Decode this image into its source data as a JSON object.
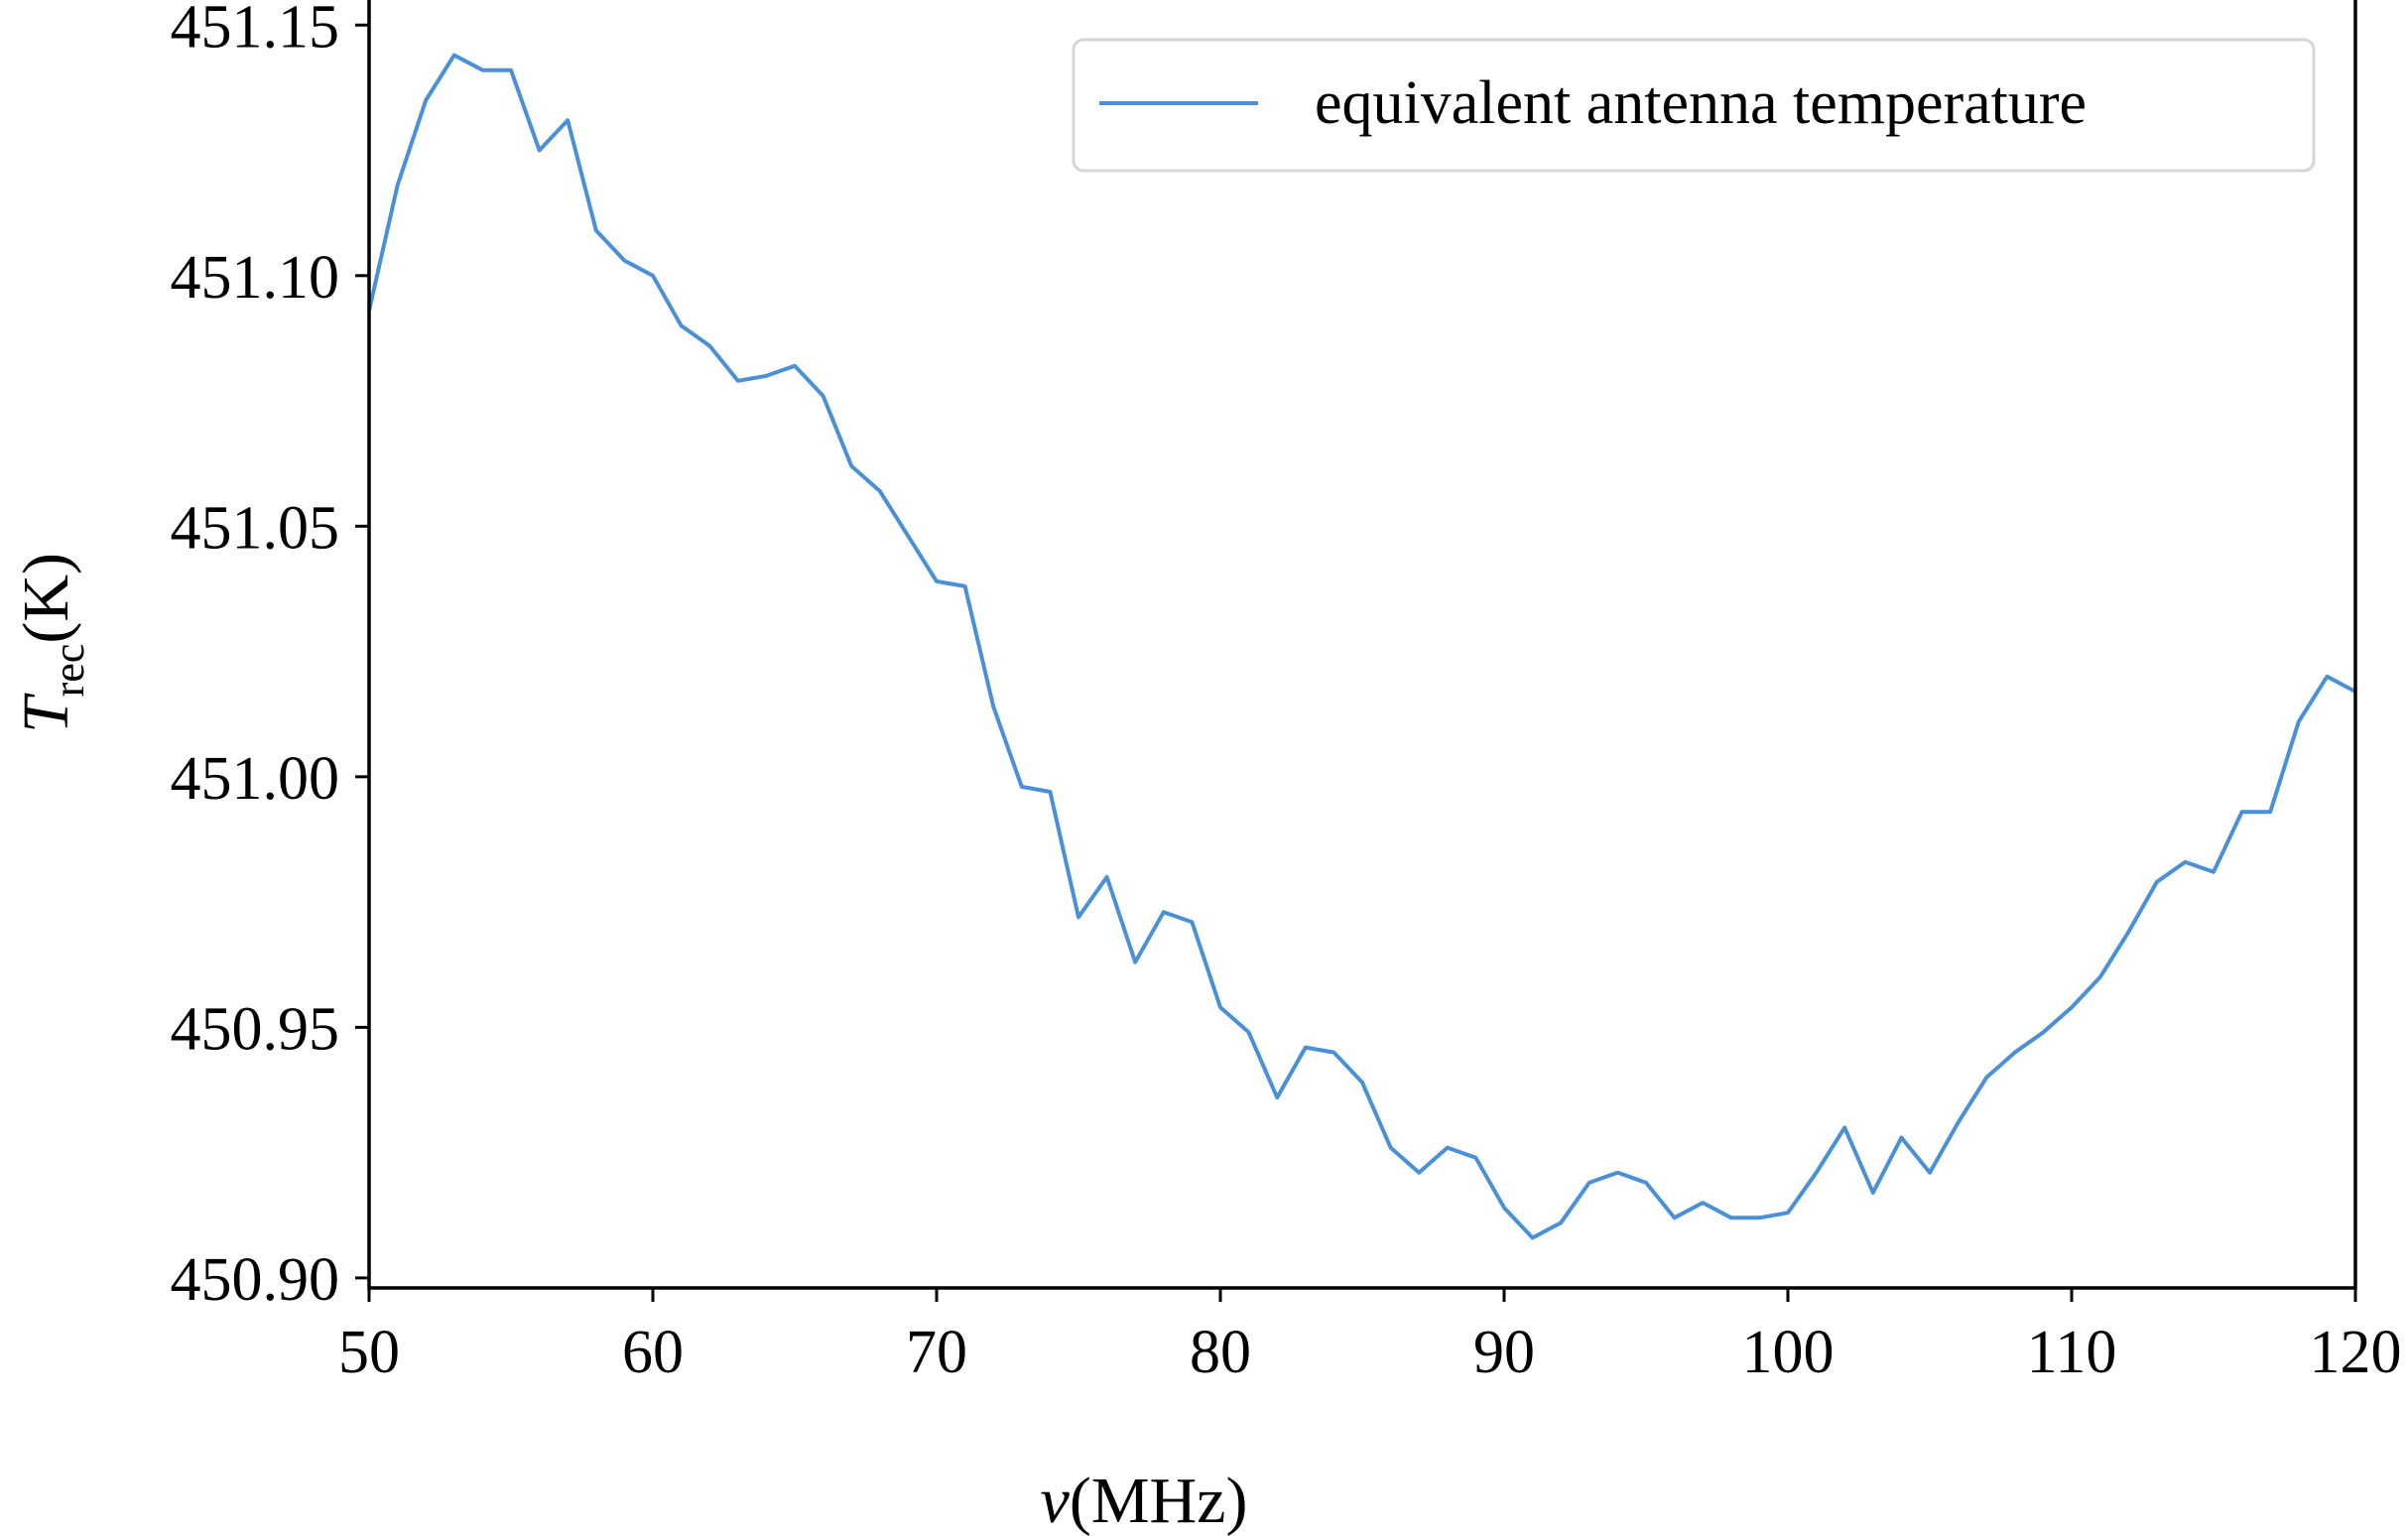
{
  "chart_data": {
    "type": "line",
    "xlabel_symbol": "ν",
    "xlabel_unit": "(MHz)",
    "ylabel_symbol": "T",
    "ylabel_subscript": "rec",
    "ylabel_unit": "(K)",
    "xlim": [
      50,
      120
    ],
    "ylim": [
      450.898,
      451.155
    ],
    "x_ticks": [
      50,
      60,
      70,
      80,
      90,
      100,
      110,
      120
    ],
    "x_tick_labels": [
      "50",
      "60",
      "70",
      "80",
      "90",
      "100",
      "110",
      "120"
    ],
    "y_ticks": [
      450.9,
      450.95,
      451.0,
      451.05,
      451.1,
      451.15
    ],
    "y_tick_labels": [
      "450.90",
      "450.95",
      "451.00",
      "451.05",
      "451.10",
      "451.15"
    ],
    "grid": false,
    "legend_position": "top-right",
    "series": [
      {
        "name": "equivalent antenna temperature",
        "color": "#4a90d9",
        "x": [
          50,
          51,
          52,
          53,
          54,
          55,
          56,
          57,
          58,
          59,
          60,
          61,
          62,
          63,
          64,
          65,
          66,
          67,
          68,
          69,
          70,
          71,
          72,
          73,
          74,
          75,
          76,
          77,
          78,
          79,
          80,
          81,
          82,
          83,
          84,
          85,
          86,
          87,
          88,
          89,
          90,
          91,
          92,
          93,
          94,
          95,
          96,
          97,
          98,
          99,
          100,
          101,
          102,
          103,
          104,
          105,
          106,
          107,
          108,
          109,
          110,
          111,
          112,
          113,
          114,
          115,
          116,
          117,
          118,
          119,
          120
        ],
        "y": [
          451.093,
          451.118,
          451.135,
          451.144,
          451.141,
          451.141,
          451.125,
          451.131,
          451.109,
          451.103,
          451.1,
          451.09,
          451.086,
          451.079,
          451.08,
          451.082,
          451.076,
          451.062,
          451.057,
          451.048,
          451.039,
          451.038,
          451.014,
          450.998,
          450.997,
          450.972,
          450.98,
          450.963,
          450.973,
          450.971,
          450.954,
          450.949,
          450.936,
          450.946,
          450.945,
          450.939,
          450.926,
          450.921,
          450.926,
          450.924,
          450.914,
          450.908,
          450.911,
          450.919,
          450.921,
          450.919,
          450.912,
          450.915,
          450.912,
          450.912,
          450.913,
          450.921,
          450.93,
          450.917,
          450.928,
          450.921,
          450.931,
          450.94,
          450.945,
          450.949,
          450.954,
          450.96,
          450.969,
          450.979,
          450.983,
          450.981,
          450.993,
          450.993,
          451.011,
          451.02,
          451.017
        ]
      }
    ]
  }
}
